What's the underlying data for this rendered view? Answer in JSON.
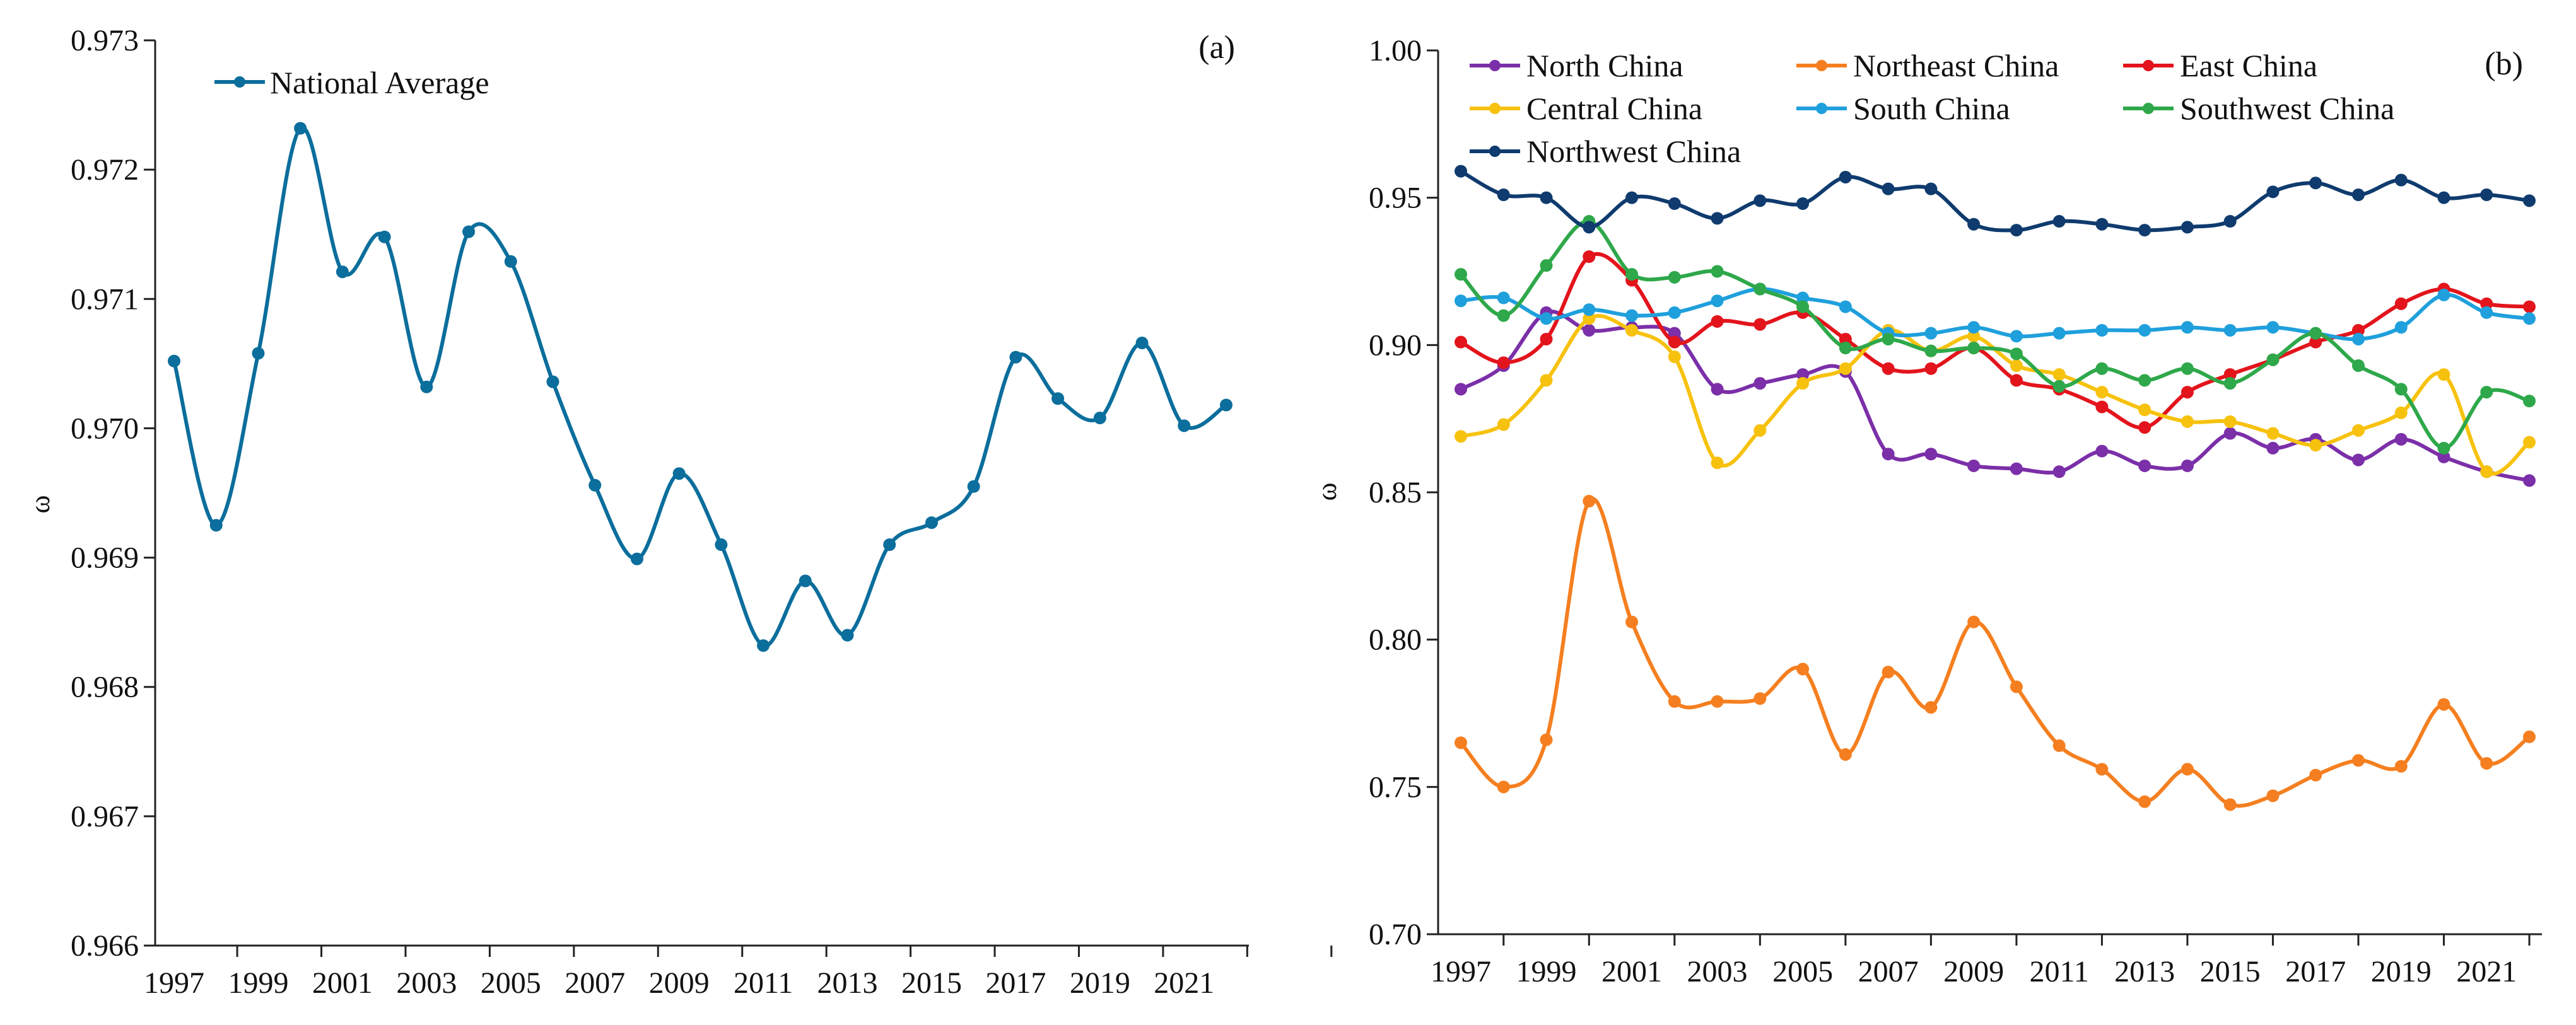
{
  "panels": {
    "a": {
      "label": "(a)",
      "ylabel": "ω",
      "legend": "National Average"
    },
    "b": {
      "label": "(b)",
      "ylabel": "ω"
    }
  },
  "chart_data": [
    {
      "type": "line",
      "title": "",
      "panel": "(a)",
      "xlabel": "",
      "ylabel": "ω",
      "x": [
        1997,
        1998,
        1999,
        2000,
        2001,
        2002,
        2003,
        2004,
        2005,
        2006,
        2007,
        2008,
        2009,
        2010,
        2011,
        2012,
        2013,
        2014,
        2015,
        2016,
        2017,
        2018,
        2019,
        2020,
        2021,
        2022
      ],
      "x_ticks": [
        "1997",
        "1999",
        "2001",
        "2003",
        "2005",
        "2007",
        "2009",
        "2011",
        "2013",
        "2015",
        "2017",
        "2019",
        "2021"
      ],
      "ylim": [
        0.966,
        0.973
      ],
      "y_ticks": [
        "0.966",
        "0.967",
        "0.968",
        "0.969",
        "0.970",
        "0.971",
        "0.972",
        "0.973"
      ],
      "legend_position": "top-left",
      "grid": false,
      "colors": {
        "National Average": "#0b6e9c"
      },
      "series": [
        {
          "name": "National Average",
          "values": [
            0.97052,
            0.96925,
            0.97058,
            0.97232,
            0.97121,
            0.97148,
            0.97032,
            0.97152,
            0.97129,
            0.97036,
            0.96956,
            0.96899,
            0.96965,
            0.9691,
            0.96832,
            0.96882,
            0.9684,
            0.9691,
            0.96927,
            0.96955,
            0.97055,
            0.97023,
            0.97008,
            0.97066,
            0.97002,
            0.97018
          ]
        }
      ]
    },
    {
      "type": "line",
      "title": "",
      "panel": "(b)",
      "xlabel": "",
      "ylabel": "ω",
      "x": [
        1997,
        1998,
        1999,
        2000,
        2001,
        2002,
        2003,
        2004,
        2005,
        2006,
        2007,
        2008,
        2009,
        2010,
        2011,
        2012,
        2013,
        2014,
        2015,
        2016,
        2017,
        2018,
        2019,
        2020,
        2021,
        2022
      ],
      "x_ticks": [
        "1997",
        "1999",
        "2001",
        "2003",
        "2005",
        "2007",
        "2009",
        "2011",
        "2013",
        "2015",
        "2017",
        "2019",
        "2021"
      ],
      "ylim": [
        0.7,
        1.0
      ],
      "y_ticks": [
        "0.70",
        "0.75",
        "0.80",
        "0.85",
        "0.90",
        "0.95",
        "1.00"
      ],
      "legend_position": "top",
      "grid": false,
      "series": [
        {
          "name": "North China",
          "color": "#7b2fa8",
          "values": [
            0.885,
            0.893,
            0.911,
            0.905,
            0.906,
            0.904,
            0.885,
            0.887,
            0.89,
            0.891,
            0.863,
            0.863,
            0.859,
            0.858,
            0.857,
            0.864,
            0.859,
            0.859,
            0.87,
            0.865,
            0.868,
            0.861,
            0.868,
            0.862,
            0.857,
            0.854
          ]
        },
        {
          "name": "Northeast China",
          "color": "#f57f20",
          "values": [
            0.765,
            0.75,
            0.766,
            0.847,
            0.806,
            0.779,
            0.779,
            0.78,
            0.79,
            0.761,
            0.789,
            0.777,
            0.806,
            0.784,
            0.764,
            0.756,
            0.745,
            0.756,
            0.744,
            0.747,
            0.754,
            0.759,
            0.757,
            0.778,
            0.758,
            0.767
          ]
        },
        {
          "name": "East China",
          "color": "#e3141c",
          "values": [
            0.901,
            0.894,
            0.902,
            0.93,
            0.922,
            0.901,
            0.908,
            0.907,
            0.911,
            0.902,
            0.892,
            0.892,
            0.899,
            0.888,
            0.885,
            0.879,
            0.872,
            0.884,
            0.89,
            0.895,
            0.901,
            0.905,
            0.914,
            0.919,
            0.914,
            0.913
          ]
        },
        {
          "name": "Central China",
          "color": "#f7c20e",
          "values": [
            0.869,
            0.873,
            0.888,
            0.909,
            0.905,
            0.896,
            0.86,
            0.871,
            0.887,
            0.892,
            0.905,
            0.898,
            0.903,
            0.893,
            0.89,
            0.884,
            0.878,
            0.874,
            0.874,
            0.87,
            0.866,
            0.871,
            0.877,
            0.89,
            0.857,
            0.867
          ]
        },
        {
          "name": "South China",
          "color": "#1fa0dc",
          "values": [
            0.915,
            0.916,
            0.909,
            0.912,
            0.91,
            0.911,
            0.915,
            0.919,
            0.916,
            0.913,
            0.904,
            0.904,
            0.906,
            0.903,
            0.904,
            0.905,
            0.905,
            0.906,
            0.905,
            0.906,
            0.904,
            0.902,
            0.906,
            0.917,
            0.911,
            0.909
          ]
        },
        {
          "name": "Southwest China",
          "color": "#2ea84a",
          "values": [
            0.924,
            0.91,
            0.927,
            0.942,
            0.924,
            0.923,
            0.925,
            0.919,
            0.913,
            0.899,
            0.902,
            0.898,
            0.899,
            0.897,
            0.886,
            0.892,
            0.888,
            0.892,
            0.887,
            0.895,
            0.904,
            0.893,
            0.885,
            0.865,
            0.884,
            0.881
          ]
        },
        {
          "name": "Northwest China",
          "color": "#0f3b6e",
          "values": [
            0.959,
            0.951,
            0.95,
            0.94,
            0.95,
            0.948,
            0.943,
            0.949,
            0.948,
            0.957,
            0.953,
            0.953,
            0.941,
            0.939,
            0.942,
            0.941,
            0.939,
            0.94,
            0.942,
            0.952,
            0.955,
            0.951,
            0.956,
            0.95,
            0.951,
            0.949
          ]
        }
      ]
    }
  ]
}
